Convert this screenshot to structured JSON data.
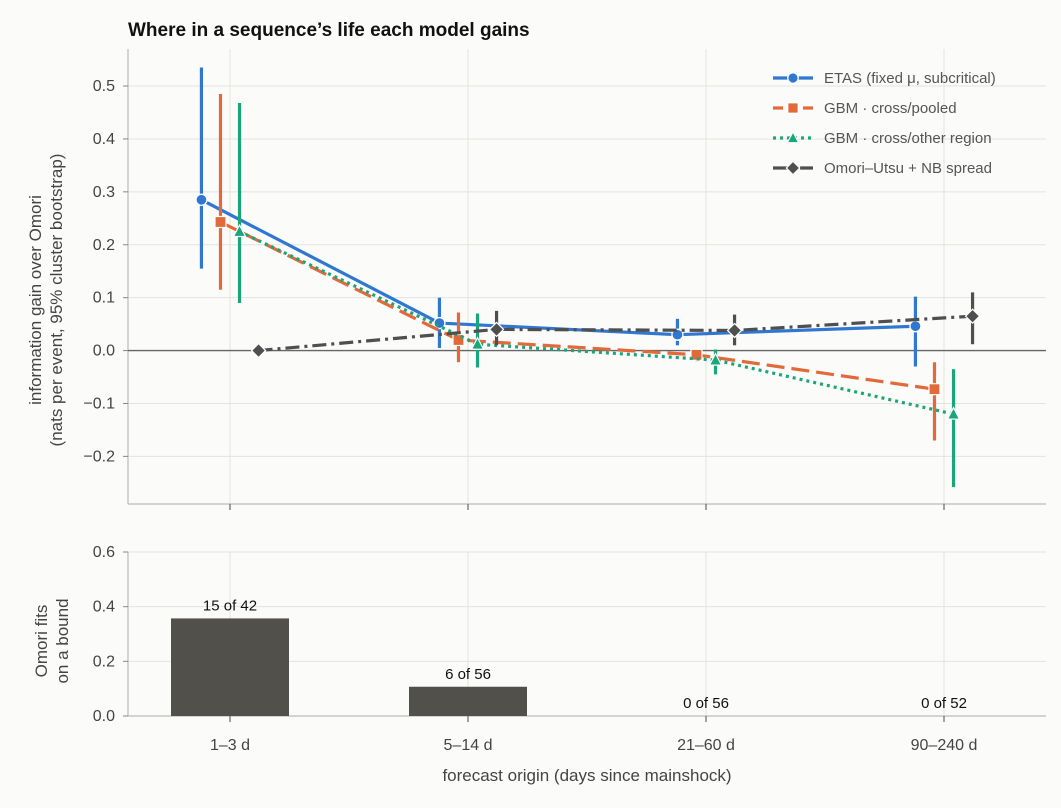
{
  "chart_data": [
    {
      "type": "line",
      "title": "Where in a sequence’s life each model gains",
      "xlabel": "forecast origin (days since mainshock)",
      "ylabel": [
        "information gain over Omori",
        "(nats per event, 95% cluster bootstrap)"
      ],
      "categories": [
        "1–3 d",
        "5–14 d",
        "21–60 d",
        "90–240 d"
      ],
      "ylim": [
        -0.29,
        0.57
      ],
      "yticks": [
        -0.2,
        -0.1,
        0.0,
        0.1,
        0.2,
        0.3,
        0.4,
        0.5
      ],
      "ytick_labels": [
        "−0.2",
        "−0.1",
        "0.0",
        "0.1",
        "0.2",
        "0.3",
        "0.4",
        "0.5"
      ],
      "grid": true,
      "zero_line": true,
      "legend_position": "top-right",
      "series": [
        {
          "name": "ETAS (fixed μ, subcritical)",
          "color": "#2f77d0",
          "marker": "circle",
          "linestyle": "solid",
          "offset": -0.12,
          "values": [
            0.285,
            0.052,
            0.03,
            0.046
          ],
          "lower": [
            0.155,
            0.005,
            0.01,
            -0.03
          ],
          "upper": [
            0.535,
            0.1,
            0.06,
            0.102
          ]
        },
        {
          "name": "GBM · cross/pooled",
          "color": "#e26a3a",
          "marker": "square",
          "linestyle": "dashed",
          "offset": -0.04,
          "values": [
            0.243,
            0.02,
            -0.008,
            -0.073
          ],
          "lower": [
            0.115,
            -0.022,
            -0.02,
            -0.17
          ],
          "upper": [
            0.485,
            0.072,
            0.002,
            -0.022
          ]
        },
        {
          "name": "GBM · cross/other region",
          "color": "#1aa57b",
          "marker": "triangle",
          "linestyle": "dotted",
          "offset": 0.04,
          "values": [
            0.225,
            0.012,
            -0.018,
            -0.12
          ],
          "lower": [
            0.09,
            -0.032,
            -0.045,
            -0.258
          ],
          "upper": [
            0.468,
            0.07,
            0.002,
            -0.035
          ]
        },
        {
          "name": "Omori–Utsu + NB spread",
          "color": "#4f4f4f",
          "marker": "diamond",
          "linestyle": "dashdot",
          "offset": 0.12,
          "values": [
            0.0,
            0.04,
            0.038,
            0.065
          ],
          "lower": [
            null,
            0.01,
            0.01,
            0.012
          ],
          "upper": [
            null,
            0.075,
            0.068,
            0.11
          ]
        }
      ]
    },
    {
      "type": "bar",
      "ylabel": [
        "Omori fits",
        "on a bound"
      ],
      "categories": [
        "1–3 d",
        "5–14 d",
        "21–60 d",
        "90–240 d"
      ],
      "values": [
        0.357,
        0.107,
        0.0,
        0.0
      ],
      "labels": [
        "15 of 42",
        "6 of 56",
        "0 of 56",
        "0 of 52"
      ],
      "ylim": [
        0,
        0.6
      ],
      "yticks": [
        0.0,
        0.2,
        0.4,
        0.6
      ],
      "ytick_labels": [
        "0.0",
        "0.2",
        "0.4",
        "0.6"
      ],
      "color": "#52504b",
      "grid": true
    }
  ]
}
